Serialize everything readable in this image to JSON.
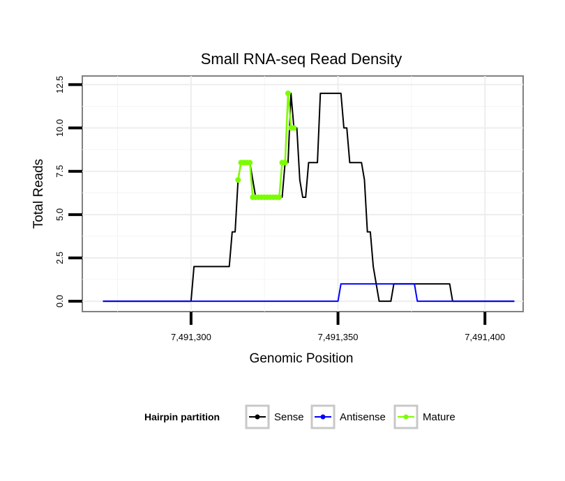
{
  "chart_data": {
    "type": "line",
    "title": "Small RNA-seq Read Density",
    "xlabel": "Genomic Position",
    "ylabel": "Total Reads",
    "xlim": [
      7491263,
      7491413
    ],
    "ylim": [
      -0.6,
      13
    ],
    "x_ticks": [
      {
        "value": 7491300,
        "label": "7,491,300"
      },
      {
        "value": 7491350,
        "label": "7,491,350"
      },
      {
        "value": 7491400,
        "label": "7,491,400"
      }
    ],
    "y_ticks": [
      {
        "value": 0,
        "label": "0.0"
      },
      {
        "value": 2.5,
        "label": "2.5"
      },
      {
        "value": 5,
        "label": "5.0"
      },
      {
        "value": 7.5,
        "label": "7.5"
      },
      {
        "value": 10,
        "label": "10.0"
      },
      {
        "value": 12.5,
        "label": "12.5"
      }
    ],
    "grid": true,
    "legend": {
      "title": "Hairpin partition",
      "position": "bottom",
      "entries": [
        "Sense",
        "Antisense",
        "Mature"
      ]
    },
    "series": [
      {
        "name": "Sense",
        "color": "#000000",
        "x": [
          7491270,
          7491300,
          7491301,
          7491313,
          7491314,
          7491315,
          7491316,
          7491317,
          7491318,
          7491320,
          7491321,
          7491322,
          7491331,
          7491332,
          7491333,
          7491334,
          7491335,
          7491336,
          7491337,
          7491338,
          7491339,
          7491340,
          7491343,
          7491344,
          7491351,
          7491352,
          7491353,
          7491354,
          7491358,
          7491359,
          7491360,
          7491361,
          7491362,
          7491364,
          7491365,
          7491368,
          7491369,
          7491370,
          7491371,
          7491372,
          7491388,
          7491389,
          7491390,
          7491410
        ],
        "y": [
          0,
          0,
          2,
          2,
          4,
          4,
          7,
          8,
          8,
          8,
          7,
          6,
          6,
          8,
          8,
          12,
          10,
          10,
          7,
          6,
          6,
          8,
          8,
          12,
          12,
          10,
          10,
          8,
          8,
          7,
          4,
          4,
          2,
          0,
          0,
          0,
          1,
          1,
          1,
          1,
          1,
          0,
          0,
          0
        ]
      },
      {
        "name": "Antisense",
        "color": "#0000ff",
        "x": [
          7491270,
          7491350,
          7491351,
          7491376,
          7491377,
          7491410
        ],
        "y": [
          0,
          0,
          1,
          1,
          0,
          0
        ]
      },
      {
        "name": "Mature",
        "color": "#7cfc00",
        "x": [
          7491316,
          7491317,
          7491318,
          7491319,
          7491320,
          7491321,
          7491322,
          7491323,
          7491324,
          7491325,
          7491326,
          7491327,
          7491328,
          7491329,
          7491330,
          7491331,
          7491332,
          7491333,
          7491334,
          7491335
        ],
        "y": [
          7,
          8,
          8,
          8,
          8,
          6,
          6,
          6,
          6,
          6,
          6,
          6,
          6,
          6,
          6,
          8,
          8,
          12,
          10,
          10
        ]
      }
    ]
  }
}
